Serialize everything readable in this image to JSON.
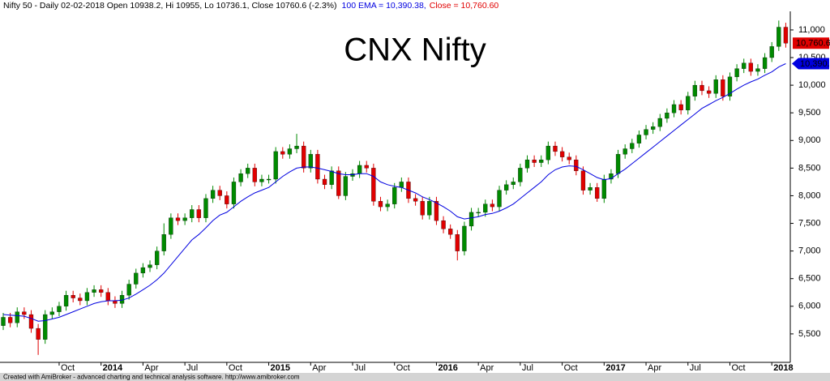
{
  "chart_data": {
    "type": "candlestick",
    "title": "CNX Nifty",
    "subtitle": "Nifty 50 - Daily 02-02-2018 Open 10938.2, Hi 10955, Lo 10736.1, Close 10760.6 (-2.3%)",
    "close_name": "Close = 10,760.60",
    "footer": "Created with AmiBroker - advanced charting and technical analysis software. http://www.amibroker.com",
    "categories": [
      null,
      null,
      null,
      null,
      null,
      null,
      null,
      null,
      "Oct",
      null,
      null,
      null,
      null,
      null,
      "2014",
      null,
      null,
      null,
      null,
      null,
      "Apr",
      null,
      null,
      null,
      null,
      null,
      "Jul",
      null,
      null,
      null,
      null,
      null,
      "Oct",
      null,
      null,
      null,
      null,
      null,
      "2015",
      null,
      null,
      null,
      null,
      null,
      "Apr",
      null,
      null,
      null,
      null,
      null,
      "Jul",
      null,
      null,
      null,
      null,
      null,
      "Oct",
      null,
      null,
      null,
      null,
      null,
      "2016",
      null,
      null,
      null,
      null,
      null,
      "Apr",
      null,
      null,
      null,
      null,
      null,
      "Jul",
      null,
      null,
      null,
      null,
      null,
      "Oct",
      null,
      null,
      null,
      null,
      null,
      "2017",
      null,
      null,
      null,
      null,
      null,
      "Apr",
      null,
      null,
      null,
      null,
      null,
      "Jul",
      null,
      null,
      null,
      null,
      null,
      "Oct",
      null,
      null,
      null,
      null,
      null,
      "2018",
      null,
      null
    ],
    "open": [
      5650,
      5800,
      5700,
      5900,
      5850,
      5600,
      5400,
      5850,
      5900,
      6000,
      6200,
      6150,
      6100,
      6250,
      6300,
      6250,
      6100,
      6050,
      6200,
      6400,
      6600,
      6700,
      6750,
      7000,
      7300,
      7600,
      7550,
      7600,
      7750,
      7600,
      7950,
      8100,
      8000,
      7850,
      8250,
      8400,
      8500,
      8250,
      8300,
      8300,
      8800,
      8750,
      8850,
      8900,
      8500,
      8750,
      8300,
      8200,
      8450,
      8000,
      8350,
      8400,
      8550,
      8500,
      7900,
      7800,
      7850,
      8150,
      8250,
      7950,
      7900,
      7650,
      7900,
      7550,
      7400,
      7300,
      7000,
      7450,
      7700,
      7700,
      7850,
      7800,
      8100,
      8200,
      8250,
      8500,
      8650,
      8600,
      8650,
      8900,
      8800,
      8700,
      8650,
      8450,
      8100,
      8150,
      7950,
      8300,
      8400,
      8750,
      8850,
      8950,
      9100,
      9200,
      9250,
      9400,
      9500,
      9650,
      9550,
      9800,
      10000,
      9900,
      9850,
      10100,
      9800,
      10150,
      10300,
      10400,
      10250,
      10300,
      10500,
      10700,
      11050
    ],
    "high": [
      5880,
      5880,
      5980,
      5980,
      5930,
      5680,
      5930,
      5980,
      6080,
      6280,
      6280,
      6230,
      6330,
      6380,
      6380,
      6330,
      6180,
      6280,
      6480,
      6680,
      6780,
      6830,
      7080,
      7500,
      7680,
      7680,
      7680,
      7830,
      7830,
      8030,
      8180,
      8180,
      8080,
      8330,
      8480,
      8580,
      8580,
      8380,
      8380,
      8880,
      8880,
      8930,
      9120,
      8980,
      8830,
      8830,
      8380,
      8530,
      8530,
      8430,
      8480,
      8630,
      8630,
      8580,
      7980,
      7930,
      8230,
      8330,
      8330,
      8030,
      7980,
      7980,
      7980,
      7630,
      7480,
      7380,
      7530,
      7780,
      7780,
      7930,
      7930,
      8180,
      8280,
      8330,
      8580,
      8730,
      8730,
      8730,
      8980,
      8980,
      8880,
      8780,
      8730,
      8530,
      8230,
      8230,
      8380,
      8480,
      8830,
      8930,
      9030,
      9180,
      9280,
      9330,
      9480,
      9580,
      9730,
      9730,
      9880,
      10080,
      10080,
      9980,
      10180,
      10180,
      10230,
      10380,
      10480,
      10480,
      10380,
      10580,
      10780,
      11170,
      11130
    ],
    "low": [
      5570,
      5620,
      5620,
      5770,
      5520,
      5120,
      5320,
      5770,
      5820,
      5920,
      6070,
      6020,
      6020,
      6170,
      6170,
      6020,
      5970,
      5970,
      6120,
      6320,
      6520,
      6620,
      6670,
      6920,
      7220,
      7470,
      7470,
      7520,
      7520,
      7520,
      7870,
      7920,
      7770,
      7770,
      8170,
      8320,
      8170,
      8170,
      8220,
      8220,
      8670,
      8670,
      8770,
      8420,
      8420,
      8220,
      8120,
      8120,
      7940,
      7920,
      8270,
      8320,
      8420,
      7820,
      7720,
      7720,
      7770,
      8070,
      7870,
      7820,
      7570,
      7570,
      7470,
      7320,
      7220,
      6830,
      6920,
      7370,
      7620,
      7620,
      7720,
      7720,
      8020,
      8120,
      8170,
      8420,
      8520,
      8520,
      8570,
      8720,
      8620,
      8570,
      8370,
      8020,
      8020,
      7890,
      7870,
      8220,
      8320,
      8670,
      8770,
      8870,
      9020,
      9120,
      9170,
      9320,
      9420,
      9470,
      9470,
      9720,
      9820,
      9770,
      9770,
      9720,
      9720,
      10070,
      10220,
      10170,
      10170,
      10220,
      10420,
      10620,
      10680
    ],
    "close": [
      5800,
      5700,
      5900,
      5850,
      5600,
      5400,
      5850,
      5900,
      6000,
      6200,
      6150,
      6100,
      6250,
      6300,
      6250,
      6100,
      6050,
      6200,
      6400,
      6600,
      6700,
      6750,
      7000,
      7300,
      7600,
      7550,
      7600,
      7750,
      7600,
      7950,
      8100,
      8000,
      7850,
      8250,
      8400,
      8500,
      8250,
      8300,
      8300,
      8800,
      8750,
      8850,
      8900,
      8500,
      8750,
      8300,
      8200,
      8450,
      8000,
      8350,
      8400,
      8550,
      8500,
      7900,
      7800,
      7850,
      8150,
      8250,
      7950,
      7900,
      7650,
      7900,
      7550,
      7400,
      7300,
      7000,
      7450,
      7700,
      7700,
      7850,
      7800,
      8100,
      8200,
      8250,
      8500,
      8650,
      8600,
      8650,
      8900,
      8800,
      8700,
      8650,
      8450,
      8100,
      8150,
      7950,
      8300,
      8400,
      8750,
      8850,
      8950,
      9100,
      9200,
      9250,
      9400,
      9500,
      9650,
      9550,
      9800,
      10000,
      9900,
      9850,
      10100,
      9800,
      10150,
      10300,
      10400,
      10250,
      10300,
      10500,
      10700,
      11050,
      10760
    ],
    "up_color": "#008a00",
    "down_color": "#e00000",
    "close_color": "#e00000",
    "title_color": "#1e8a1e",
    "series": [
      {
        "name": "100 EMA = 10,390.38,",
        "color": "#0000e0",
        "values": [
          5850,
          5840,
          5830,
          5820,
          5780,
          5730,
          5740,
          5770,
          5800,
          5850,
          5900,
          5950,
          6000,
          6050,
          6080,
          6100,
          6100,
          6110,
          6150,
          6220,
          6300,
          6380,
          6480,
          6600,
          6750,
          6900,
          7050,
          7200,
          7300,
          7420,
          7550,
          7650,
          7700,
          7800,
          7900,
          7980,
          8050,
          8100,
          8150,
          8250,
          8350,
          8430,
          8500,
          8520,
          8520,
          8500,
          8470,
          8440,
          8400,
          8380,
          8380,
          8400,
          8400,
          8350,
          8250,
          8200,
          8170,
          8150,
          8100,
          8050,
          7980,
          7930,
          7870,
          7800,
          7720,
          7620,
          7580,
          7600,
          7620,
          7660,
          7680,
          7720,
          7780,
          7850,
          7950,
          8050,
          8150,
          8250,
          8380,
          8470,
          8520,
          8540,
          8530,
          8470,
          8400,
          8330,
          8290,
          8310,
          8400,
          8480,
          8580,
          8680,
          8780,
          8880,
          8980,
          9080,
          9180,
          9280,
          9380,
          9480,
          9580,
          9650,
          9720,
          9780,
          9850,
          9930,
          10000,
          10060,
          10110,
          10180,
          10240,
          10330,
          10390
        ]
      }
    ],
    "close_tag": {
      "value": 10760.6,
      "label": "10,760.6"
    },
    "ema_tag": {
      "value": 10390.4,
      "label": "10,390.4"
    },
    "ylim": [
      4985,
      11395
    ],
    "yticks": [
      {
        "value": 5500,
        "label": "5,500"
      },
      {
        "value": 6000,
        "label": "6,000"
      },
      {
        "value": 6500,
        "label": "6,500"
      },
      {
        "value": 7000,
        "label": "7,000"
      },
      {
        "value": 7500,
        "label": "7,500"
      },
      {
        "value": 8000,
        "label": "8,000"
      },
      {
        "value": 8500,
        "label": "8,500"
      },
      {
        "value": 9000,
        "label": "9,000"
      },
      {
        "value": 9500,
        "label": "9,500"
      },
      {
        "value": 10000,
        "label": "10,000"
      },
      {
        "value": 10500,
        "label": "10,500"
      },
      {
        "value": 11000,
        "label": "11,000"
      }
    ],
    "grid": false
  }
}
